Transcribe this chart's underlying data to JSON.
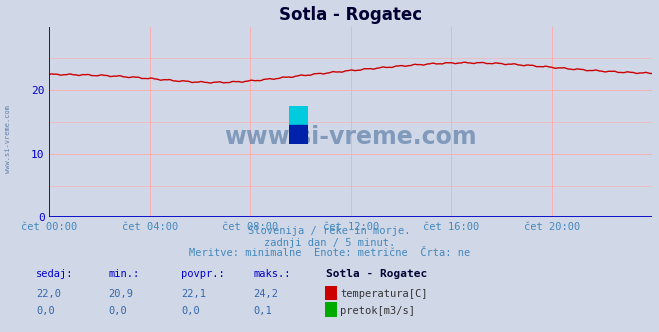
{
  "title": "Sotla - Rogatec",
  "bg_color": "#d0d8e8",
  "plot_bg_color": "#d0d8e8",
  "line_color_temp": "#cc0000",
  "line_color_flow": "#00aa00",
  "grid_color_h": "#ffaaaa",
  "grid_color_v": "#ffaaaa",
  "axis_color": "#0000cc",
  "text_color": "#4488bb",
  "xlabel_color": "#4488bb",
  "title_color": "#000033",
  "watermark_color": "#6080aa",
  "xlim": [
    0,
    288
  ],
  "ylim": [
    0,
    30
  ],
  "yticks": [
    0,
    10,
    20
  ],
  "xtick_labels": [
    "čet 00:00",
    "čet 04:00",
    "čet 08:00",
    "čet 12:00",
    "čet 16:00",
    "čet 20:00"
  ],
  "xtick_positions": [
    0,
    48,
    96,
    144,
    192,
    240
  ],
  "subtitle1": "Slovenija / reke in morje.",
  "subtitle2": "zadnji dan / 5 minut.",
  "subtitle3": "Meritve: minimalne  Enote: metrične  Črta: ne",
  "table_header": [
    "sedaj:",
    "min.:",
    "povpr.:",
    "maks.:",
    "Sotla - Rogatec"
  ],
  "table_row1_vals": [
    "22,0",
    "20,9",
    "22,1",
    "24,2"
  ],
  "table_row1_label": "temperatura[C]",
  "table_row1_color": "#cc0000",
  "table_row2_vals": [
    "0,0",
    "0,0",
    "0,0",
    "0,1"
  ],
  "table_row2_label": "pretok[m3/s]",
  "table_row2_color": "#00aa00",
  "watermark": "www.si-vreme.com",
  "left_watermark": "www.si-vreme.com"
}
